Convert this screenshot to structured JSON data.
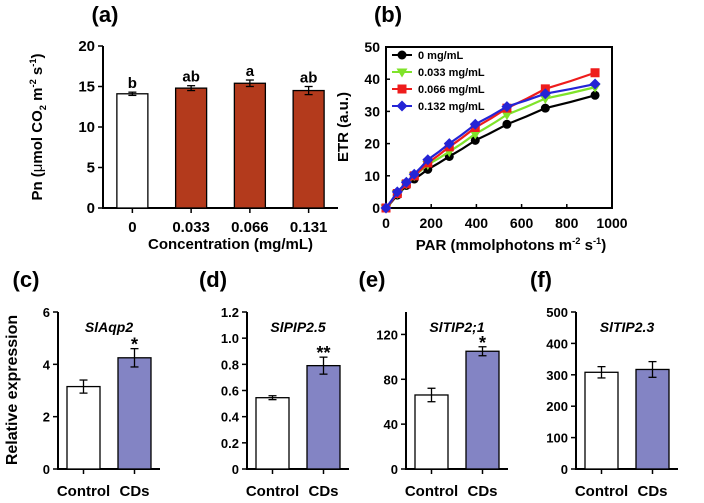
{
  "chart_data": [
    {
      "id": "a",
      "panel_label": "(a)",
      "type": "bar",
      "xlabel": "Concentration (mg/mL)",
      "ylabel_parts": [
        "Pn (",
        "μ",
        "mol CO",
        "2",
        " m",
        "-2",
        " s",
        "-1",
        ")"
      ],
      "ylim": [
        0,
        20
      ],
      "yticks": [
        0,
        5,
        10,
        15,
        20
      ],
      "categories": [
        "0",
        "0.033",
        "0.066",
        "0.131"
      ],
      "values": [
        14.1,
        14.8,
        15.4,
        14.5
      ],
      "errors": [
        0.2,
        0.3,
        0.4,
        0.5
      ],
      "annotations": [
        "b",
        "ab",
        "a",
        "ab"
      ],
      "bar_colors": [
        "#ffffff",
        "#b33a1c",
        "#b33a1c",
        "#b33a1c"
      ]
    },
    {
      "id": "b",
      "panel_label": "(b)",
      "type": "line",
      "xlabel_parts": [
        "PAR (mmolphotons m",
        "-2",
        " s",
        "-1",
        ")"
      ],
      "ylabel": "ETR (a.u.)",
      "xlim": [
        0,
        1000
      ],
      "xticks": [
        0,
        200,
        400,
        600,
        800,
        1000
      ],
      "ylim": [
        0,
        50
      ],
      "yticks": [
        0,
        10,
        20,
        30,
        40,
        50
      ],
      "x": [
        0,
        50,
        90,
        125,
        185,
        280,
        395,
        535,
        705,
        925
      ],
      "series": [
        {
          "name": "0 mg/mL",
          "color": "#000000",
          "marker": "circle",
          "values": [
            0,
            4,
            7,
            9,
            12,
            16,
            21,
            26,
            31,
            35
          ]
        },
        {
          "name": "0.033 mg/mL",
          "color": "#7fe32a",
          "marker": "triangle",
          "values": [
            0,
            4.5,
            7.5,
            10,
            13.5,
            17.5,
            23,
            29,
            34,
            37.5
          ]
        },
        {
          "name": "0.066 mg/mL",
          "color": "#ee1c1c",
          "marker": "square",
          "values": [
            0,
            4.5,
            7.5,
            10,
            14,
            19,
            25,
            31,
            37,
            42
          ]
        },
        {
          "name": "0.132 mg/mL",
          "color": "#2424d6",
          "marker": "diamond",
          "values": [
            0,
            5,
            8,
            10.5,
            15,
            20,
            26,
            31.5,
            35.5,
            38.5
          ]
        }
      ]
    },
    {
      "id": "c",
      "panel_label": "(c)",
      "type": "bar",
      "gene": "SlAqp2",
      "ylabel": "Relative expression",
      "ylim": [
        0,
        6
      ],
      "yticks": [
        0,
        2,
        4,
        6
      ],
      "ytick_labels": [
        "0",
        "2",
        "4",
        "6"
      ],
      "categories": [
        "Control",
        "CDs"
      ],
      "values": [
        3.15,
        4.25
      ],
      "errors": [
        0.25,
        0.35
      ],
      "annotations": [
        "",
        "*"
      ],
      "bar_colors": [
        "#ffffff",
        "#8384c4"
      ]
    },
    {
      "id": "d",
      "panel_label": "(d)",
      "type": "bar",
      "gene": "SlPIP2.5",
      "ylim": [
        0,
        1.2
      ],
      "yticks": [
        0,
        0.2,
        0.4,
        0.6,
        0.8,
        1.0,
        1.2
      ],
      "ytick_labels": [
        "0",
        "0.2",
        "0.4",
        "0.6",
        "0.8",
        "1.0",
        "1.2"
      ],
      "categories": [
        "Control",
        "CDs"
      ],
      "values": [
        0.545,
        0.79
      ],
      "errors": [
        0.015,
        0.065
      ],
      "annotations": [
        "",
        "**"
      ],
      "bar_colors": [
        "#ffffff",
        "#8384c4"
      ]
    },
    {
      "id": "e",
      "panel_label": "(e)",
      "type": "bar",
      "gene": "SlTIP2;1",
      "ylim": [
        0,
        140
      ],
      "yticks": [
        0,
        40,
        80,
        120
      ],
      "ytick_labels": [
        "0",
        "40",
        "80",
        "120"
      ],
      "categories": [
        "Control",
        "CDs"
      ],
      "values": [
        66,
        105
      ],
      "errors": [
        6,
        4
      ],
      "annotations": [
        "",
        "*"
      ],
      "bar_colors": [
        "#ffffff",
        "#8384c4"
      ]
    },
    {
      "id": "f",
      "panel_label": "(f)",
      "type": "bar",
      "gene": "SlTIP2.3",
      "ylim": [
        0,
        500
      ],
      "yticks": [
        0,
        100,
        200,
        300,
        400,
        500
      ],
      "ytick_labels": [
        "0",
        "100",
        "200",
        "300",
        "400",
        "500"
      ],
      "categories": [
        "Control",
        "CDs"
      ],
      "values": [
        308,
        317
      ],
      "errors": [
        18,
        25
      ],
      "annotations": [
        "",
        ""
      ],
      "bar_colors": [
        "#ffffff",
        "#8384c4"
      ]
    }
  ]
}
